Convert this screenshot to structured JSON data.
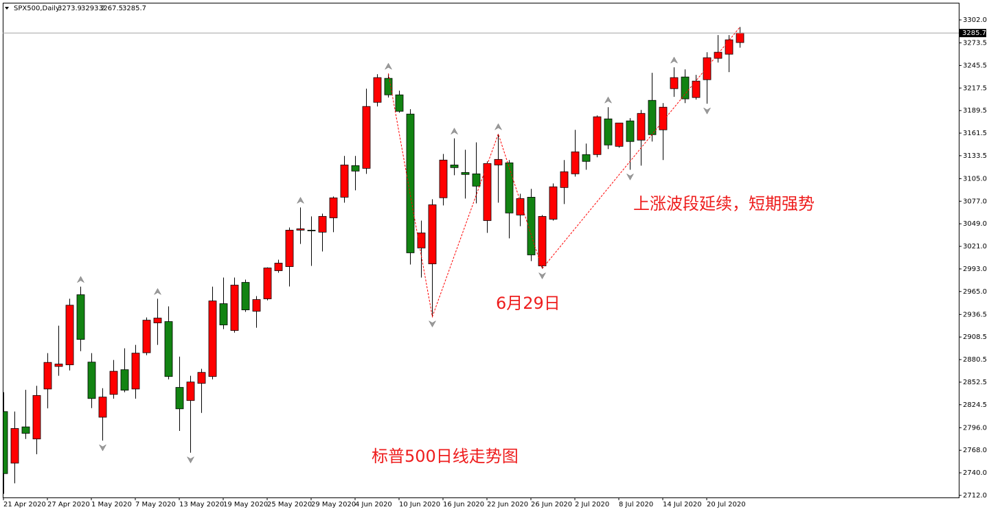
{
  "chart_data": {
    "type": "candlestick",
    "title": "SPX500,Daily",
    "categories": [
      "21 Apr 2020",
      null,
      null,
      null,
      "27 Apr 2020",
      null,
      null,
      null,
      "1 May 2020",
      null,
      null,
      null,
      "7 May 2020",
      null,
      null,
      null,
      "13 May 2020",
      null,
      null,
      null,
      "19 May 2020",
      null,
      null,
      null,
      "25 May 2020",
      null,
      null,
      null,
      "29 May 2020",
      null,
      null,
      null,
      "4 Jun 2020",
      null,
      null,
      null,
      "10 Jun 2020",
      null,
      null,
      null,
      "16 Jun 2020",
      null,
      null,
      null,
      "22 Jun 2020",
      null,
      null,
      null,
      "26 Jun 2020",
      null,
      null,
      null,
      "2 Jul 2020",
      null,
      null,
      null,
      "8 Jul 2020",
      null,
      null,
      null,
      "14 Jul 2020",
      null,
      null,
      null,
      "20 Jul 2020",
      null,
      null,
      null
    ],
    "open": [
      2816,
      2752,
      2797,
      2782,
      2844,
      2872,
      2874,
      2961,
      2877.4,
      2809,
      2837.3,
      2868,
      2844,
      2889,
      2926,
      2927.7,
      2846,
      2829.7,
      2851,
      2859.5,
      2949.9,
      2916.6,
      2976.3,
      2940.5,
      2955.9,
      2990.8,
      2995.9,
      3041.1,
      3041.1,
      3038.6,
      3056.4,
      3082,
      3121.2,
      3117.8,
      3199.7,
      3229.5,
      3209,
      3185.2,
      3019,
      2999.3,
      3081.3,
      3122,
      3112.7,
      3111,
      3053,
      3122,
      3124.7,
      3059.9,
      3082,
      2996.8,
      3054.7,
      3094,
      3111,
      3134.9,
      3134.9,
      3179.2,
      3145.1,
      3176.7,
      3152.8,
      3202.2,
      3165.6,
      3216.7,
      3231.2,
      3205.7,
      3227.8,
      3254.3,
      3259.4,
      3273.9
    ],
    "high": [
      2840,
      2816,
      2843,
      2848,
      2888.5,
      2922.6,
      2956,
      2971,
      2888.5,
      2845,
      2880,
      2894.5,
      2898.7,
      2932.8,
      2956,
      2946.5,
      2884.2,
      2860.4,
      2869,
      2971,
      2982.3,
      2982.3,
      2979.7,
      2959.3,
      2995,
      3004.4,
      3044.5,
      3069.2,
      3058.2,
      3061.6,
      3082.9,
      3133.2,
      3133.2,
      3216.7,
      3234.6,
      3235.5,
      3214.2,
      3191.2,
      3053,
      3079.5,
      3135.7,
      3155,
      3140.9,
      3150,
      3126.4,
      3160.5,
      3128.1,
      3086.3,
      3092.3,
      3059.9,
      3099.1,
      3128.1,
      3165.6,
      3148.5,
      3183.5,
      3193.7,
      3174.1,
      3180.1,
      3190.3,
      3236.3,
      3198.8,
      3243.2,
      3240.6,
      3233.8,
      3261.9,
      3283.2,
      3283.2,
      3293.2
    ],
    "low": [
      2714,
      2727,
      2782,
      2763,
      2820,
      2860.4,
      2867,
      2891,
      2820.3,
      2780,
      2832,
      2840,
      2832,
      2886,
      2898.7,
      2856,
      2792,
      2765,
      2814.3,
      2856,
      2918.3,
      2914,
      2939.7,
      2920,
      2954,
      2988.2,
      2971.2,
      3024,
      2996.8,
      3014.7,
      3038.6,
      3075.2,
      3090.5,
      3111,
      3194.6,
      3205.7,
      3186.9,
      2998.5,
      2982.3,
      2933.7,
      3071.8,
      3109.3,
      3080.3,
      3074.4,
      3037.7,
      3075.2,
      3030.9,
      3046,
      3002.7,
      2993.4,
      3053,
      3073.5,
      3107.6,
      3116.1,
      3131.5,
      3141.7,
      3143.4,
      3116.1,
      3121.2,
      3151.1,
      3128.1,
      3206.5,
      3198.8,
      3203.1,
      3198,
      3249.1,
      3237.2,
      3267.5
    ],
    "close": [
      2739,
      2795,
      2789,
      2836,
      2877,
      2875,
      2948,
      2905.5,
      2832.2,
      2834,
      2866,
      2842.5,
      2888.5,
      2929.4,
      2932,
      2859.5,
      2819.4,
      2852.7,
      2864.6,
      2953.3,
      2923.5,
      2972.9,
      2942.2,
      2955,
      2994.2,
      3000.2,
      3041.1,
      3042.8,
      3040.3,
      3058.2,
      3081.2,
      3122,
      3114.4,
      3194.6,
      3230.4,
      3209,
      3188.6,
      3013,
      3037.7,
      3072.6,
      3128.1,
      3118.7,
      3110.2,
      3095.7,
      3123.8,
      3128.9,
      3062.4,
      3080.3,
      3010.4,
      3058.2,
      3094.9,
      3113.6,
      3138.3,
      3126.4,
      3181.8,
      3146.8,
      3174.1,
      3151.1,
      3186,
      3159.6,
      3193.7,
      3230.4,
      3204,
      3226.1,
      3255.1,
      3261.9,
      3277.3,
      3285.7
    ],
    "up_color": "#ff0000",
    "down_color": "#128312",
    "ylim": [
      2709.4,
      3323.3
    ],
    "yticks": [
      {
        "value": 3302,
        "label": "3302.0"
      },
      {
        "value": 3273.5,
        "label": "3273.5"
      },
      {
        "value": 3245.5,
        "label": "3245.5"
      },
      {
        "value": 3217.5,
        "label": "3217.5"
      },
      {
        "value": 3189.5,
        "label": "3189.5"
      },
      {
        "value": 3161.5,
        "label": "3161.5"
      },
      {
        "value": 3133.5,
        "label": "3133.5"
      },
      {
        "value": 3105,
        "label": "3105.0"
      },
      {
        "value": 3077,
        "label": "3077.0"
      },
      {
        "value": 3049,
        "label": "3049.0"
      },
      {
        "value": 3021,
        "label": "3021.0"
      },
      {
        "value": 2993,
        "label": "2993.0"
      },
      {
        "value": 2965,
        "label": "2965.0"
      },
      {
        "value": 2936.5,
        "label": "2936.5"
      },
      {
        "value": 2908.5,
        "label": "2908.5"
      },
      {
        "value": 2880.5,
        "label": "2880.5"
      },
      {
        "value": 2852.5,
        "label": "2852.5"
      },
      {
        "value": 2824.5,
        "label": "2824.5"
      },
      {
        "value": 2796,
        "label": "2796.0"
      },
      {
        "value": 2768,
        "label": "2768.0"
      },
      {
        "value": 2740,
        "label": "2740.0"
      },
      {
        "value": 2712,
        "label": "2712.0"
      }
    ],
    "zigzag": {
      "color": "#ff0000",
      "pivots": [
        35,
        39,
        45,
        49,
        67
      ]
    },
    "annotations": [
      "上涨波段延续，短期强势",
      "6月29日",
      "标普500日线走势图"
    ]
  }
}
